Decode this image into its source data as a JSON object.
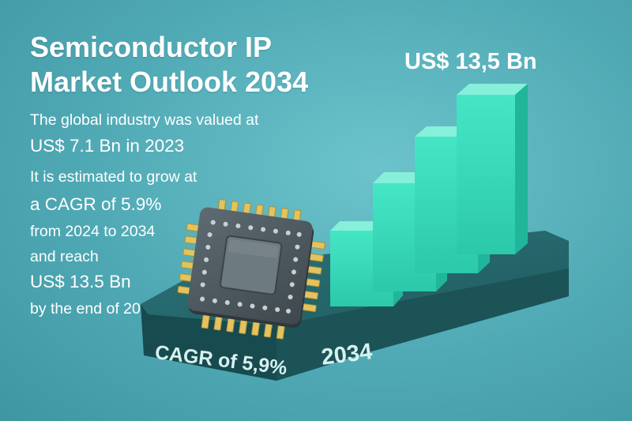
{
  "headline": {
    "line1": "Semiconductor IP",
    "line2": "Market Outlook 2034"
  },
  "description": {
    "line1": "The global industry was valued at",
    "line2": "US$ 7.1 Bn in 2023",
    "line3": "It is estimated to grow at",
    "line4": "a CAGR of 5.9%",
    "line5": "from 2024 to 2034",
    "line6": "and reach",
    "line7": "US$ 13.5 Bn",
    "line8": "by the end of 2034"
  },
  "graphic": {
    "peak_label": "US$ 13,5 Bn",
    "platform_cagr_label": "CAGR of 5,9%",
    "platform_year_label": "2034",
    "relative_bar_heights": [
      0.38,
      0.55,
      0.72,
      0.92
    ],
    "colors": {
      "background": "#57afb9",
      "platform": "#1f5f63",
      "bar_front": "#34dcbb",
      "bar_top": "#7cf0d8",
      "bar_side": "#1fb39a",
      "chip_body": "#4e5a60",
      "chip_pins": "#e6c667"
    },
    "icons": [
      "semiconductor-chip-icon"
    ]
  }
}
